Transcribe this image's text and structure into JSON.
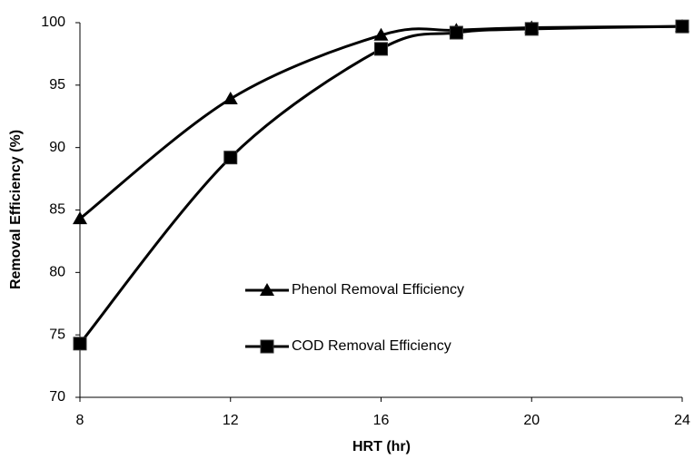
{
  "chart_data": {
    "type": "line",
    "xlabel": "HRT (hr)",
    "ylabel": "Removal Efficiency (%)",
    "x": [
      8,
      12,
      16,
      18,
      20,
      24
    ],
    "series": [
      {
        "name": "Phenol Removal Efficiency",
        "color": "#000000",
        "marker": "triangle",
        "values": [
          84.3,
          93.9,
          99.0,
          99.4,
          99.6,
          99.7
        ]
      },
      {
        "name": "COD Removal Efficiency",
        "color": "#000000",
        "marker": "square",
        "values": [
          74.3,
          89.2,
          97.9,
          99.2,
          99.5,
          99.7
        ]
      }
    ],
    "xlim": [
      8,
      24
    ],
    "xticks": [
      8,
      12,
      16,
      20,
      24
    ],
    "ylim": [
      70,
      100
    ],
    "yticks": [
      70,
      75,
      80,
      85,
      90,
      95,
      100
    ],
    "grid": false,
    "smooth": true
  }
}
